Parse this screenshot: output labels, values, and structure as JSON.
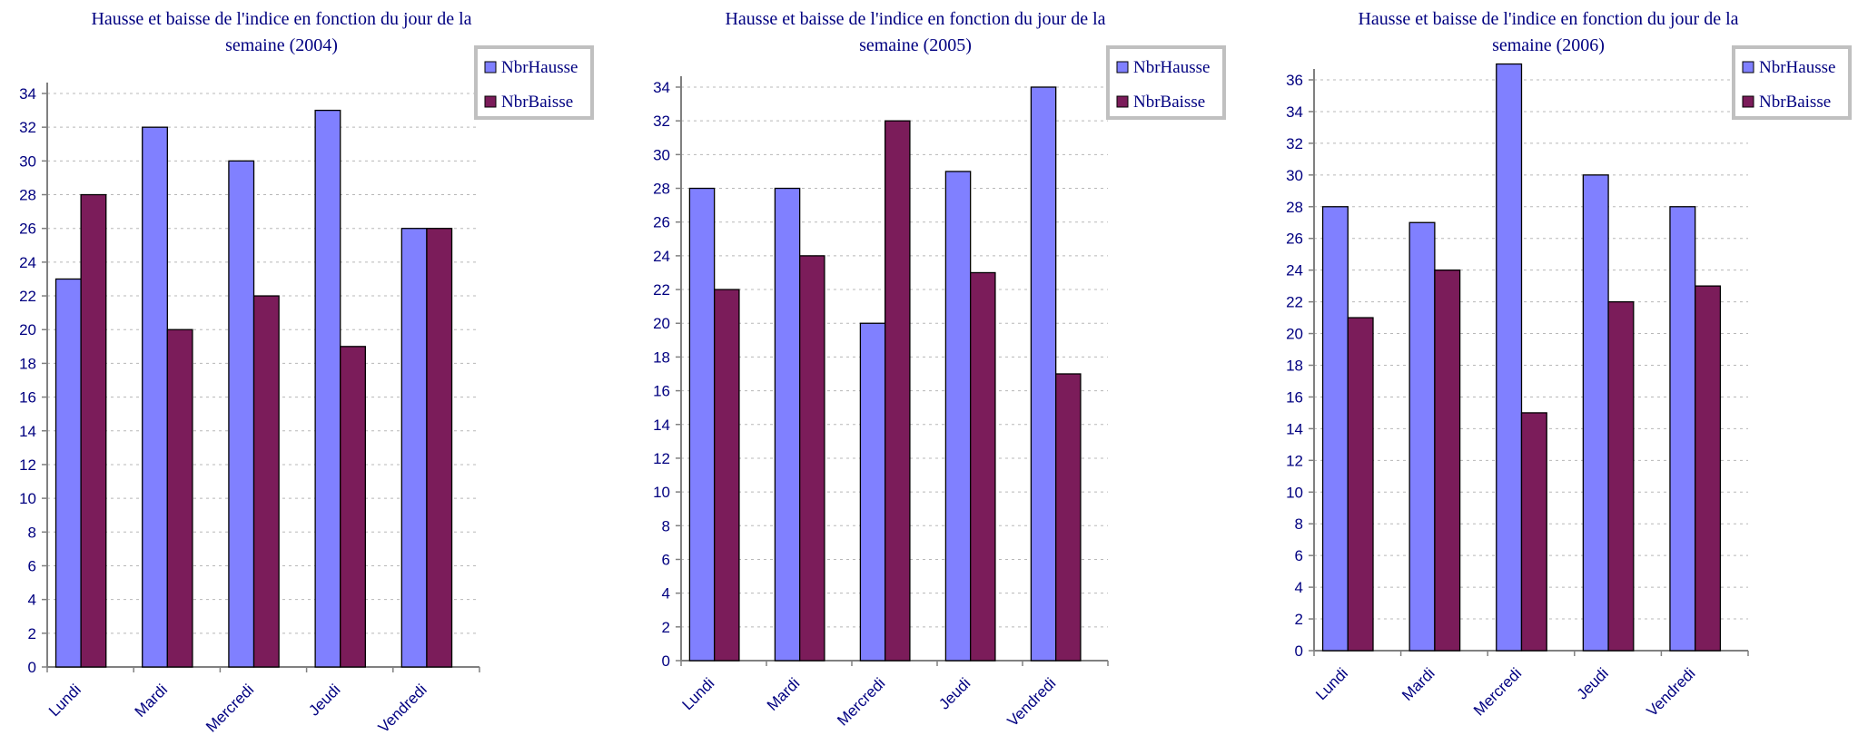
{
  "chart_data": [
    {
      "type": "bar",
      "title": "Hausse et baisse de l'indice en fonction du jour de la semaine (2004)",
      "title_lines": [
        "Hausse et baisse de l'indice en fonction du jour de la",
        "semaine (2004)"
      ],
      "categories": [
        "Lundi",
        "Mardi",
        "Mercredi",
        "Jeudi",
        "Vendredi"
      ],
      "series": [
        {
          "name": "NbrHausse",
          "values": [
            23,
            32,
            30,
            33,
            26
          ],
          "color": "#8080ff"
        },
        {
          "name": "NbrBaisse",
          "values": [
            28,
            20,
            22,
            19,
            26
          ],
          "color": "#7b1c5a"
        }
      ],
      "ylim": [
        0,
        34
      ],
      "yticks": [
        0,
        2,
        4,
        6,
        8,
        10,
        12,
        14,
        16,
        18,
        20,
        22,
        24,
        26,
        28,
        30,
        32,
        34
      ],
      "grid": true,
      "legend": "top-right"
    },
    {
      "type": "bar",
      "title": "Hausse et baisse de l'indice en fonction du jour de la semaine (2005)",
      "title_lines": [
        "Hausse et baisse de l'indice en fonction du jour de la",
        "semaine (2005)"
      ],
      "categories": [
        "Lundi",
        "Mardi",
        "Mercredi",
        "Jeudi",
        "Vendredi"
      ],
      "series": [
        {
          "name": "NbrHausse",
          "values": [
            28,
            28,
            20,
            29,
            34
          ],
          "color": "#8080ff"
        },
        {
          "name": "NbrBaisse",
          "values": [
            22,
            24,
            32,
            23,
            17
          ],
          "color": "#7b1c5a"
        }
      ],
      "ylim": [
        0,
        34
      ],
      "yticks": [
        0,
        2,
        4,
        6,
        8,
        10,
        12,
        14,
        16,
        18,
        20,
        22,
        24,
        26,
        28,
        30,
        32,
        34
      ],
      "grid": true,
      "legend": "top-right"
    },
    {
      "type": "bar",
      "title": "Hausse et baisse de l'indice en fonction du jour de la semaine (2006)",
      "title_lines": [
        "Hausse et baisse de l'indice en fonction du jour de la",
        "semaine (2006)"
      ],
      "categories": [
        "Lundi",
        "Mardi",
        "Mercredi",
        "Jeudi",
        "Vendredi"
      ],
      "series": [
        {
          "name": "NbrHausse",
          "values": [
            28,
            27,
            37,
            30,
            28
          ],
          "color": "#8080ff"
        },
        {
          "name": "NbrBaisse",
          "values": [
            21,
            24,
            15,
            22,
            23
          ],
          "color": "#7b1c5a"
        }
      ],
      "ylim": [
        0,
        36
      ],
      "yticks": [
        0,
        2,
        4,
        6,
        8,
        10,
        12,
        14,
        16,
        18,
        20,
        22,
        24,
        26,
        28,
        30,
        32,
        34,
        36
      ],
      "grid": true,
      "legend": "top-right"
    }
  ]
}
